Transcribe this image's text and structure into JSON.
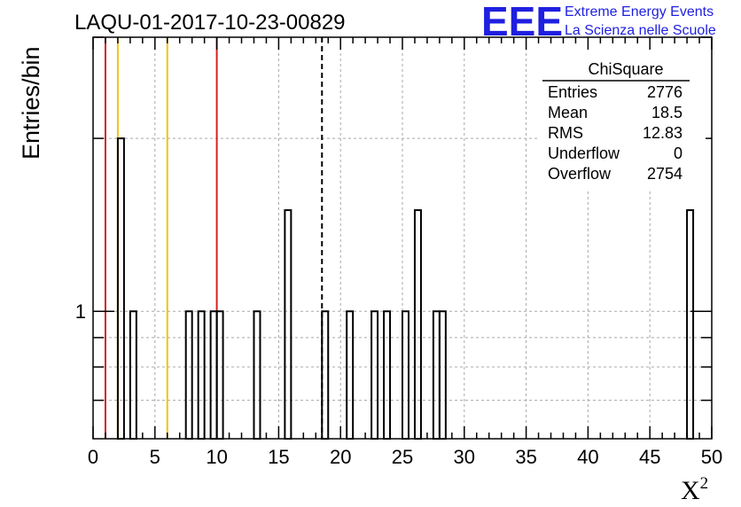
{
  "chart_data": {
    "type": "bar",
    "title": "LAQU-01-2017-10-23-00829",
    "xlabel": "X",
    "xlabel_superscript": "2",
    "ylabel": "Entries/bin",
    "xlim": [
      0,
      50
    ],
    "y_scale": "log",
    "ylim": [
      0.6,
      3.0
    ],
    "grid": true,
    "x_ticks": [
      "0",
      "5",
      "10",
      "15",
      "20",
      "25",
      "30",
      "35",
      "40",
      "45",
      "50"
    ],
    "y_ticks": [
      "1"
    ],
    "bin_width": 0.5,
    "bins": [
      {
        "x": 2.0,
        "value": 2
      },
      {
        "x": 3.0,
        "value": 1
      },
      {
        "x": 7.5,
        "value": 1
      },
      {
        "x": 8.5,
        "value": 1
      },
      {
        "x": 9.5,
        "value": 1
      },
      {
        "x": 10.0,
        "value": 1
      },
      {
        "x": 13.0,
        "value": 1
      },
      {
        "x": 15.5,
        "value": 1.5
      },
      {
        "x": 18.5,
        "value": 1
      },
      {
        "x": 20.5,
        "value": 1
      },
      {
        "x": 22.5,
        "value": 1
      },
      {
        "x": 23.5,
        "value": 1
      },
      {
        "x": 25.0,
        "value": 1
      },
      {
        "x": 26.0,
        "value": 1.5
      },
      {
        "x": 27.5,
        "value": 1
      },
      {
        "x": 28.0,
        "value": 1
      },
      {
        "x": 48.0,
        "value": 1.5
      }
    ],
    "vertical_lines": [
      {
        "x": 1.0,
        "color": "#d42020",
        "style": "solid"
      },
      {
        "x": 2.0,
        "color": "#f2c21a",
        "style": "solid"
      },
      {
        "x": 6.0,
        "color": "#f2c21a",
        "style": "solid"
      },
      {
        "x": 10.0,
        "color": "#d42020",
        "style": "solid"
      },
      {
        "x": 18.5,
        "color": "#000000",
        "style": "dashed"
      }
    ],
    "stats_box": {
      "title": "ChiSquare",
      "rows": [
        {
          "label": "Entries",
          "value": "2776"
        },
        {
          "label": "Mean",
          "value": "18.5"
        },
        {
          "label": "RMS",
          "value": "12.83"
        },
        {
          "label": "Underflow",
          "value": "0"
        },
        {
          "label": "Overflow",
          "value": "2754"
        }
      ]
    }
  },
  "logo": {
    "mark": "EEE",
    "line1": "Extreme Energy Events",
    "line2": "La Scienza nelle Scuole",
    "color": "#1f1fe0"
  }
}
